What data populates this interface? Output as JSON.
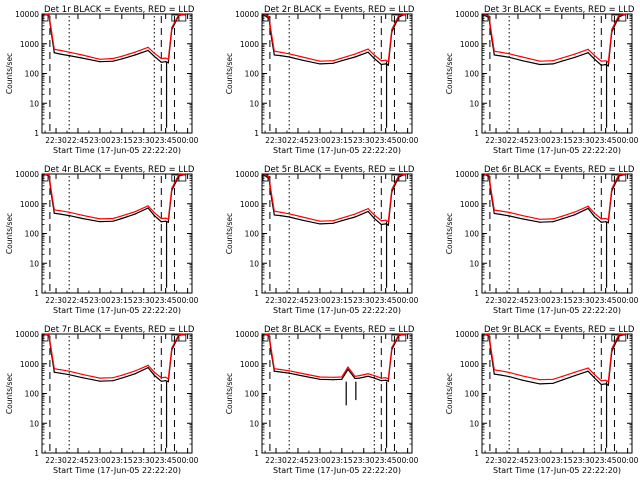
{
  "figure": {
    "rows": 3,
    "cols": 3,
    "colors": {
      "events": "#000000",
      "lld": "#ff0000",
      "background": "#ffffff",
      "axes": "#000000"
    }
  },
  "chart_data": [
    {
      "type": "line",
      "panel": "det-1r",
      "title": "Det 1r BLACK = Events, RED = LLD",
      "xlabel": "Start Time (17-Jun-05 22:22:20)",
      "ylabel": "Counts/sec",
      "yscale": "log",
      "ylim": [
        1,
        10000
      ],
      "xticks": [
        "22:30",
        "22:45",
        "23:00",
        "23:15",
        "23:30",
        "23:45",
        "00:00"
      ],
      "x": [
        22.37,
        22.42,
        22.45,
        22.48,
        22.55,
        22.65,
        22.8,
        23.0,
        23.15,
        23.25,
        23.4,
        23.55,
        23.62,
        23.7,
        23.75,
        23.78,
        23.82,
        23.9,
        23.98
      ],
      "series": [
        {
          "name": "Events",
          "values": [
            10000,
            9000,
            2000,
            500,
            450,
            400,
            330,
            250,
            260,
            310,
            420,
            600,
            380,
            240,
            250,
            230,
            3000,
            9000,
            10000
          ]
        },
        {
          "name": "LLD",
          "values": [
            10000,
            9500,
            2500,
            650,
            600,
            520,
            420,
            300,
            320,
            380,
            520,
            760,
            480,
            320,
            330,
            300,
            3500,
            9500,
            10000
          ]
        }
      ],
      "dips": [
        {
          "x": 23.76,
          "value": 1.5
        }
      ]
    },
    {
      "type": "line",
      "panel": "det-2r",
      "title": "Det 2r BLACK = Events, RED = LLD",
      "xlabel": "Start Time (17-Jun-05 22:22:20)",
      "ylabel": "Counts/sec",
      "yscale": "log",
      "ylim": [
        1,
        10000
      ],
      "xticks": [
        "22:30",
        "22:45",
        "23:00",
        "23:15",
        "23:30",
        "23:45",
        "00:00"
      ],
      "x": [
        22.37,
        22.42,
        22.45,
        22.48,
        22.55,
        22.65,
        22.8,
        23.0,
        23.15,
        23.25,
        23.4,
        23.55,
        23.62,
        23.7,
        23.75,
        23.78,
        23.82,
        23.9,
        23.98
      ],
      "series": [
        {
          "name": "Events",
          "values": [
            9000,
            7000,
            1500,
            420,
            400,
            360,
            280,
            210,
            220,
            270,
            360,
            520,
            320,
            200,
            210,
            190,
            2500,
            8000,
            10000
          ]
        },
        {
          "name": "LLD",
          "values": [
            9500,
            8000,
            2000,
            560,
            520,
            460,
            360,
            260,
            270,
            330,
            450,
            660,
            420,
            270,
            280,
            250,
            3000,
            9000,
            10000
          ]
        }
      ],
      "dips": [
        {
          "x": 23.76,
          "value": 1.5
        }
      ]
    },
    {
      "type": "line",
      "panel": "det-3r",
      "title": "Det 3r BLACK = Events, RED = LLD",
      "xlabel": "Start Time (17-Jun-05 22:22:20)",
      "ylabel": "Counts/sec",
      "yscale": "log",
      "ylim": [
        1,
        10000
      ],
      "xticks": [
        "22:30",
        "22:45",
        "23:00",
        "23:15",
        "23:30",
        "23:45",
        "00:00"
      ],
      "x": [
        22.37,
        22.42,
        22.45,
        22.48,
        22.55,
        22.65,
        22.8,
        23.0,
        23.15,
        23.25,
        23.4,
        23.55,
        23.62,
        23.7,
        23.75,
        23.78,
        23.82,
        23.9,
        23.98
      ],
      "series": [
        {
          "name": "Events",
          "values": [
            9000,
            7500,
            1600,
            420,
            390,
            350,
            270,
            200,
            210,
            260,
            350,
            500,
            310,
            190,
            200,
            180,
            2500,
            8000,
            10000
          ]
        },
        {
          "name": "LLD",
          "values": [
            9500,
            8500,
            2100,
            560,
            520,
            460,
            360,
            260,
            270,
            330,
            450,
            650,
            410,
            260,
            270,
            240,
            3000,
            9000,
            10000
          ]
        }
      ],
      "dips": [
        {
          "x": 23.76,
          "value": 1.5
        }
      ]
    },
    {
      "type": "line",
      "panel": "det-4r",
      "title": "Det 4r BLACK = Events, RED = LLD",
      "xlabel": "Start Time (17-Jun-05 22:22:20)",
      "ylabel": "Counts/sec",
      "yscale": "log",
      "ylim": [
        1,
        10000
      ],
      "xticks": [
        "22:30",
        "22:45",
        "23:00",
        "23:15",
        "23:30",
        "23:45",
        "00:00"
      ],
      "x": [
        22.37,
        22.42,
        22.45,
        22.48,
        22.55,
        22.65,
        22.8,
        23.0,
        23.15,
        23.25,
        23.4,
        23.55,
        23.62,
        23.7,
        23.75,
        23.78,
        23.82,
        23.9,
        23.98
      ],
      "series": [
        {
          "name": "Events",
          "values": [
            10000,
            8500,
            1800,
            480,
            450,
            400,
            320,
            250,
            260,
            320,
            450,
            720,
            400,
            250,
            260,
            240,
            2800,
            8500,
            10000
          ]
        },
        {
          "name": "LLD",
          "values": [
            10000,
            9500,
            2300,
            620,
            580,
            520,
            410,
            310,
            320,
            390,
            540,
            850,
            500,
            320,
            330,
            300,
            3300,
            9500,
            10000
          ]
        }
      ],
      "dips": [
        {
          "x": 23.76,
          "value": 1.5
        }
      ]
    },
    {
      "type": "line",
      "panel": "det-5r",
      "title": "Det 5r BLACK = Events, RED = LLD",
      "xlabel": "Start Time (17-Jun-05 22:22:20)",
      "ylabel": "Counts/sec",
      "yscale": "log",
      "ylim": [
        1,
        10000
      ],
      "xticks": [
        "22:30",
        "22:45",
        "23:00",
        "23:15",
        "23:30",
        "23:45",
        "00:00"
      ],
      "x": [
        22.37,
        22.42,
        22.45,
        22.48,
        22.55,
        22.65,
        22.8,
        23.0,
        23.15,
        23.25,
        23.4,
        23.55,
        23.62,
        23.7,
        23.75,
        23.78,
        23.82,
        23.9,
        23.98
      ],
      "series": [
        {
          "name": "Events",
          "values": [
            9000,
            7000,
            1500,
            420,
            400,
            360,
            280,
            210,
            220,
            270,
            360,
            550,
            320,
            200,
            210,
            190,
            2500,
            8000,
            10000
          ]
        },
        {
          "name": "LLD",
          "values": [
            9500,
            8000,
            2000,
            560,
            520,
            460,
            360,
            260,
            270,
            330,
            450,
            680,
            420,
            270,
            280,
            250,
            3000,
            9000,
            10000
          ]
        }
      ],
      "dips": [
        {
          "x": 23.76,
          "value": 1.5
        }
      ]
    },
    {
      "type": "line",
      "panel": "det-6r",
      "title": "Det 6r BLACK = Events, RED = LLD",
      "xlabel": "Start Time (17-Jun-05 22:22:20)",
      "ylabel": "Counts/sec",
      "yscale": "log",
      "ylim": [
        1,
        10000
      ],
      "xticks": [
        "22:30",
        "22:45",
        "23:00",
        "23:15",
        "23:30",
        "23:45",
        "00:00"
      ],
      "x": [
        22.37,
        22.42,
        22.45,
        22.48,
        22.55,
        22.65,
        22.8,
        23.0,
        23.15,
        23.25,
        23.4,
        23.55,
        23.62,
        23.7,
        23.75,
        23.78,
        23.82,
        23.9,
        23.98
      ],
      "series": [
        {
          "name": "Events",
          "values": [
            10000,
            8000,
            1700,
            470,
            440,
            390,
            310,
            240,
            250,
            310,
            430,
            700,
            380,
            240,
            250,
            230,
            2700,
            8500,
            10000
          ]
        },
        {
          "name": "LLD",
          "values": [
            10000,
            9000,
            2200,
            610,
            570,
            510,
            400,
            300,
            310,
            380,
            530,
            830,
            480,
            310,
            320,
            290,
            3200,
            9500,
            10000
          ]
        }
      ],
      "dips": [
        {
          "x": 23.76,
          "value": 1.5
        }
      ]
    },
    {
      "type": "line",
      "panel": "det-7r",
      "title": "Det 7r BLACK = Events, RED = LLD",
      "xlabel": "Start Time (17-Jun-05 22:22:20)",
      "ylabel": "Counts/sec",
      "yscale": "log",
      "ylim": [
        1,
        10000
      ],
      "xticks": [
        "22:30",
        "22:45",
        "23:00",
        "23:15",
        "23:30",
        "23:45",
        "00:00"
      ],
      "x": [
        22.37,
        22.42,
        22.45,
        22.48,
        22.55,
        22.65,
        22.8,
        23.0,
        23.15,
        23.25,
        23.4,
        23.55,
        23.62,
        23.7,
        23.75,
        23.78,
        23.82,
        23.9,
        23.98
      ],
      "series": [
        {
          "name": "Events",
          "values": [
            10000,
            9000,
            2000,
            520,
            480,
            430,
            340,
            260,
            270,
            330,
            460,
            740,
            410,
            260,
            270,
            250,
            2900,
            9000,
            10000
          ]
        },
        {
          "name": "LLD",
          "values": [
            10000,
            9500,
            2500,
            680,
            630,
            560,
            440,
            330,
            340,
            410,
            570,
            880,
            520,
            340,
            350,
            310,
            3400,
            9500,
            10000
          ]
        }
      ],
      "dips": [
        {
          "x": 23.76,
          "value": 1.5
        }
      ]
    },
    {
      "type": "line",
      "panel": "det-8r",
      "title": "Det 8r BLACK = Events, RED = LLD",
      "xlabel": "Start Time (17-Jun-05 22:22:20)",
      "ylabel": "Counts/sec",
      "yscale": "log",
      "ylim": [
        1,
        10000
      ],
      "xticks": [
        "22:30",
        "22:45",
        "23:00",
        "23:15",
        "23:30",
        "23:45",
        "00:00"
      ],
      "x": [
        22.37,
        22.42,
        22.45,
        22.48,
        22.55,
        22.65,
        22.8,
        23.0,
        23.15,
        23.25,
        23.32,
        23.4,
        23.45,
        23.55,
        23.62,
        23.7,
        23.75,
        23.78,
        23.82,
        23.9,
        23.98
      ],
      "series": [
        {
          "name": "Events",
          "values": [
            10000,
            9000,
            2000,
            560,
            530,
            480,
            390,
            300,
            290,
            300,
            650,
            320,
            330,
            380,
            330,
            270,
            280,
            260,
            3000,
            9000,
            10000
          ]
        },
        {
          "name": "LLD",
          "values": [
            10000,
            9500,
            2500,
            680,
            640,
            580,
            470,
            360,
            350,
            360,
            780,
            380,
            400,
            460,
            400,
            330,
            340,
            310,
            3500,
            9500,
            10000
          ]
        }
      ],
      "dips": [
        {
          "x": 23.3,
          "value": 40
        },
        {
          "x": 23.41,
          "value": 60
        },
        {
          "x": 23.76,
          "value": 1.5
        }
      ]
    },
    {
      "type": "line",
      "panel": "det-9r",
      "title": "Det 9r BLACK = Events, RED = LLD",
      "xlabel": "Start Time (17-Jun-05 22:22:20)",
      "ylabel": "Counts/sec",
      "yscale": "log",
      "ylim": [
        1,
        10000
      ],
      "xticks": [
        "22:30",
        "22:45",
        "23:00",
        "23:15",
        "23:30",
        "23:45",
        "00:00"
      ],
      "x": [
        22.37,
        22.42,
        22.45,
        22.48,
        22.55,
        22.65,
        22.8,
        23.0,
        23.15,
        23.25,
        23.4,
        23.55,
        23.62,
        23.7,
        23.75,
        23.78,
        23.82,
        23.9,
        23.98
      ],
      "series": [
        {
          "name": "Events",
          "values": [
            10000,
            8500,
            1800,
            450,
            420,
            370,
            280,
            210,
            220,
            280,
            400,
            560,
            340,
            200,
            210,
            190,
            2600,
            8500,
            10000
          ]
        },
        {
          "name": "LLD",
          "values": [
            10000,
            9500,
            2300,
            620,
            580,
            510,
            390,
            290,
            300,
            370,
            520,
            720,
            440,
            270,
            280,
            250,
            3200,
            9500,
            10000
          ]
        }
      ],
      "dips": [
        {
          "x": 23.76,
          "value": 1.5
        }
      ]
    }
  ]
}
